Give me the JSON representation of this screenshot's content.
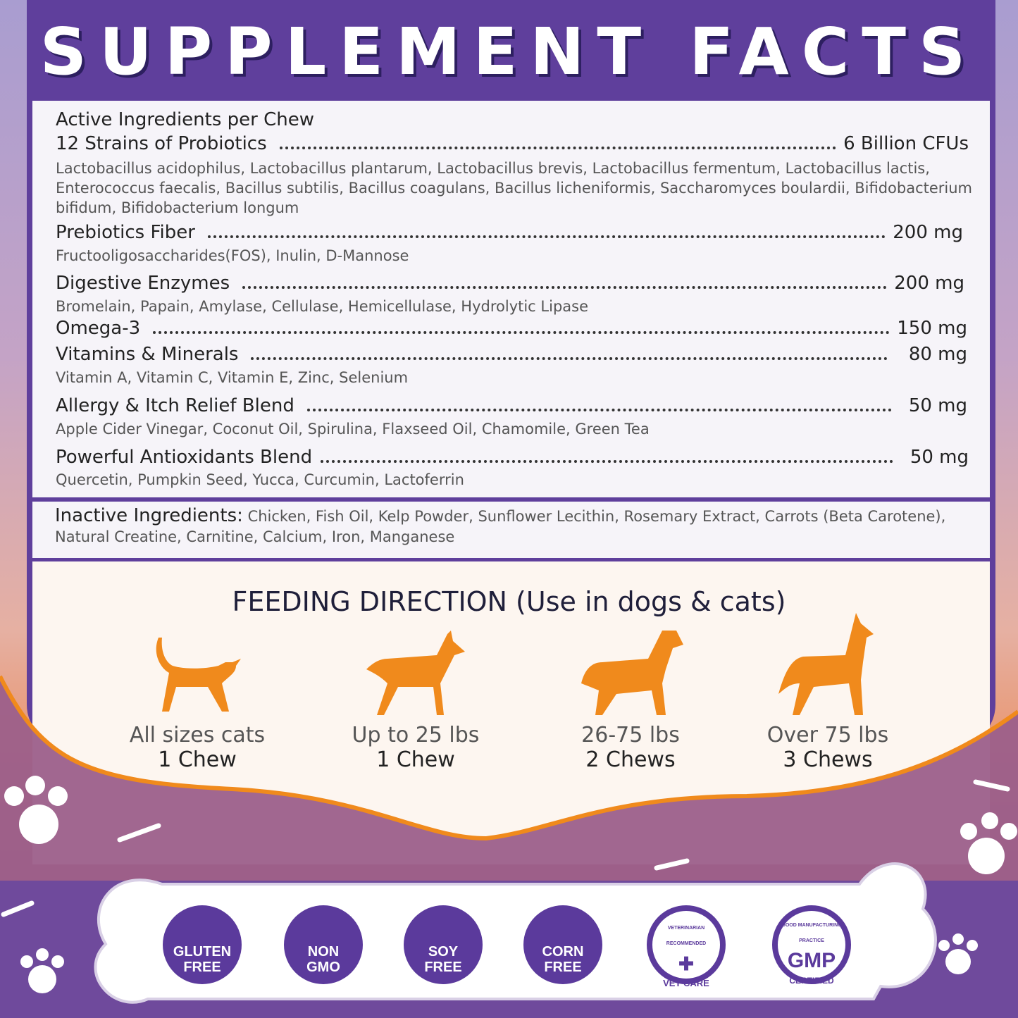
{
  "title": "SUPPLEMENT FACTS",
  "active": {
    "heading": "Active Ingredients per Chew",
    "items": [
      {
        "name": "12 Strains of Probiotics",
        "amount": "6 Billion CFUs",
        "detail": "Lactobacillus acidophilus, Lactobacillus plantarum, Lactobacillus brevis, Lactobacillus fermentum, Lactobacillus lactis, Enterococcus faecalis, Bacillus subtilis, Bacillus coagulans, Bacillus licheniformis, Saccharomyces boulardii, Bifidobacterium bifidum, Bifidobacterium longum"
      },
      {
        "name": "Prebiotics Fiber",
        "amount": "200 mg",
        "detail": "Fructooligosaccharides(FOS), Inulin, D-Mannose"
      },
      {
        "name": "Digestive Enzymes",
        "amount": "200 mg",
        "detail": "Bromelain, Papain, Amylase, Cellulase, Hemicellulase, Hydrolytic Lipase"
      },
      {
        "name": "Omega-3",
        "amount": "150 mg",
        "detail": ""
      },
      {
        "name": "Vitamins & Minerals",
        "amount": "80 mg",
        "detail": "Vitamin A, Vitamin C, Vitamin E, Zinc, Selenium"
      },
      {
        "name": "Allergy & Itch Relief Blend",
        "amount": "50 mg",
        "detail": "Apple Cider Vinegar, Coconut Oil, Spirulina, Flaxseed Oil, Chamomile, Green Tea"
      },
      {
        "name": "Powerful Antioxidants Blend",
        "amount": "50 mg",
        "detail": "Quercetin, Pumpkin Seed, Yucca, Curcumin, Lactoferrin"
      }
    ]
  },
  "inactive": {
    "label": "Inactive Ingredients:",
    "text": " Chicken, Fish Oil, Kelp Powder, Sunflower Lecithin, Rosemary Extract, Carrots (Beta Carotene), Natural Creatine, Carnitine, Calcium, Iron, Manganese"
  },
  "feeding": {
    "title": "FEEDING DIRECTION (Use in dogs & cats)",
    "pets": [
      {
        "size": "All sizes cats",
        "dose": "1 Chew",
        "icon": "cat-icon"
      },
      {
        "size": "Up to 25 lbs",
        "dose": "1 Chew",
        "icon": "small-dog-icon"
      },
      {
        "size": "26-75 lbs",
        "dose": "2 Chews",
        "icon": "medium-dog-icon"
      },
      {
        "size": "Over 75 lbs",
        "dose": "3 Chews",
        "icon": "large-dog-icon"
      }
    ]
  },
  "badges": [
    {
      "line1": "GLUTEN",
      "line2": "FREE",
      "icon": "wheat-icon"
    },
    {
      "line1": "NON",
      "line2": "GMO",
      "icon": "dna-icon"
    },
    {
      "line1": "SOY",
      "line2": "FREE",
      "icon": "soybean-icon"
    },
    {
      "line1": "CORN",
      "line2": "FREE",
      "icon": "corn-icon"
    },
    {
      "ring": "VETERINARIAN RECOMMENDED",
      "main": "VET CARE",
      "icon": "vet-care-seal"
    },
    {
      "ring": "GOOD MANUFACTURING PRACTICE",
      "main": "GMP",
      "sub": "CERTIFIED",
      "icon": "gmp-seal"
    }
  ],
  "colors": {
    "purple": "#5f3f9c",
    "orange": "#f08a1c",
    "panel": "#f6f4f9"
  }
}
